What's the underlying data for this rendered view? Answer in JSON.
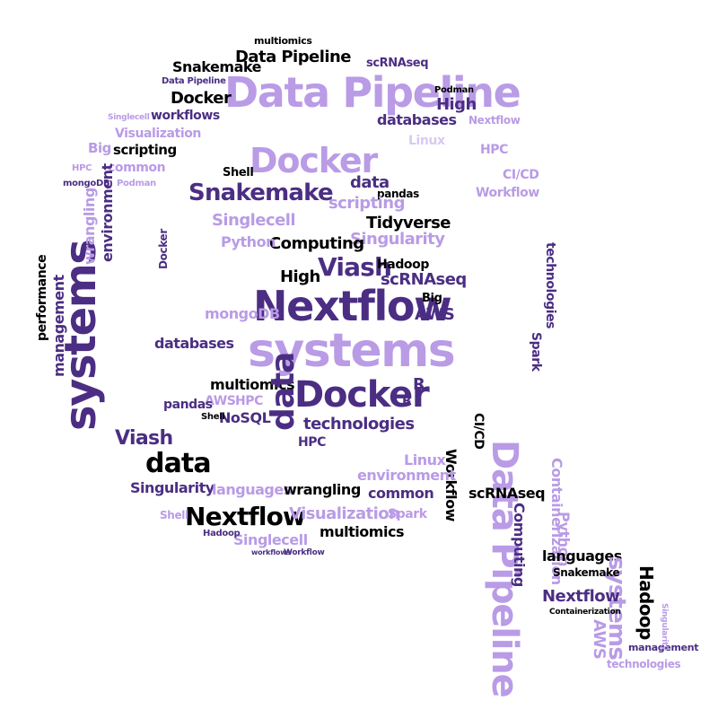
{
  "colors": {
    "background": "#ffffff",
    "palette": [
      "#000000",
      "#4b2e83",
      "#b99be6",
      "#d9c9f2"
    ]
  },
  "words": [
    "Data Pipeline",
    "systems",
    "Nextflow",
    "Docker",
    "Snakemake",
    "data",
    "Viash",
    "Singularity",
    "Visualization",
    "Workflow",
    "scRNAseq",
    "Podman",
    "Singlecell",
    "Containerization",
    "High",
    "Computing",
    "technologies",
    "Tidyverse",
    "multiomics",
    "management",
    "databases",
    "performance",
    "environment",
    "languages",
    "wrangling",
    "scripting",
    "Linux",
    "Python",
    "HPC",
    "AWS",
    "NoSQL",
    "mongoDB",
    "Hadoop",
    "Spark",
    "CI/CD",
    "Big",
    "common",
    "omics",
    "Shell",
    "pandas",
    "workflows",
    "R"
  ]
}
